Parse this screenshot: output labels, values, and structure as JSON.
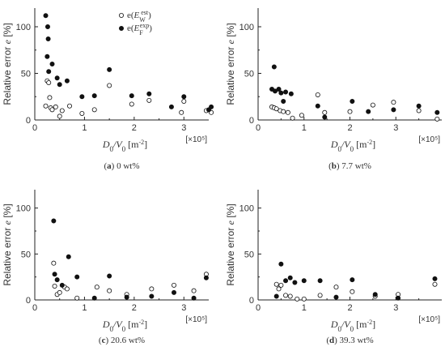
{
  "chart_data": [
    {
      "type": "scatter",
      "panel_label": "(a)",
      "caption": "0 wt%",
      "xlabel": "D0/V0 [m⁻²]",
      "ylabel": "Relative error e [%]",
      "xlim": [
        0,
        3.5
      ],
      "ylim": [
        0,
        120
      ],
      "xticks": [
        0,
        1,
        2,
        3
      ],
      "yticks": [
        0,
        50,
        100
      ],
      "x_multiplier": "[×10⁵]",
      "legend_placement": "top-right",
      "legend": [
        {
          "marker": "open",
          "label": "e(Ew est)"
        },
        {
          "marker": "filled",
          "label": "e(Ef exp)"
        }
      ],
      "series": [
        {
          "marker": "open",
          "points": [
            [
              0.22,
              15
            ],
            [
              0.25,
              42
            ],
            [
              0.28,
              40
            ],
            [
              0.3,
              24
            ],
            [
              0.32,
              13
            ],
            [
              0.35,
              11
            ],
            [
              0.42,
              14
            ],
            [
              0.5,
              4
            ],
            [
              0.55,
              10
            ],
            [
              0.7,
              15
            ],
            [
              0.95,
              7
            ],
            [
              1.2,
              11
            ],
            [
              1.5,
              37
            ],
            [
              1.95,
              17
            ],
            [
              2.3,
              21
            ],
            [
              2.95,
              8
            ],
            [
              3.0,
              20
            ],
            [
              3.45,
              10
            ],
            [
              3.55,
              8
            ]
          ]
        },
        {
          "marker": "filled",
          "points": [
            [
              0.22,
              112
            ],
            [
              0.26,
              100
            ],
            [
              0.27,
              87
            ],
            [
              0.25,
              68
            ],
            [
              0.28,
              52
            ],
            [
              0.35,
              60
            ],
            [
              0.45,
              45
            ],
            [
              0.5,
              38
            ],
            [
              0.65,
              42
            ],
            [
              0.95,
              25
            ],
            [
              1.2,
              26
            ],
            [
              1.5,
              54
            ],
            [
              1.95,
              26
            ],
            [
              2.3,
              28
            ],
            [
              2.75,
              14
            ],
            [
              3.0,
              25
            ],
            [
              3.5,
              11
            ],
            [
              3.55,
              14
            ]
          ]
        }
      ]
    },
    {
      "type": "scatter",
      "panel_label": "(b)",
      "caption": "7.7 wt%",
      "xlabel": "D0/V0 [m⁻²]",
      "ylabel": "Relative error e [%]",
      "xlim": [
        0,
        4
      ],
      "ylim": [
        0,
        120
      ],
      "xticks": [
        0,
        1,
        2,
        3
      ],
      "yticks": [
        0,
        50,
        100
      ],
      "x_multiplier": "[×10⁵]",
      "series": [
        {
          "marker": "open",
          "points": [
            [
              0.3,
              14
            ],
            [
              0.35,
              13
            ],
            [
              0.4,
              12
            ],
            [
              0.48,
              10
            ],
            [
              0.55,
              9
            ],
            [
              0.65,
              8
            ],
            [
              0.75,
              2
            ],
            [
              0.95,
              5
            ],
            [
              1.3,
              27
            ],
            [
              1.45,
              8
            ],
            [
              2.0,
              9
            ],
            [
              2.5,
              16
            ],
            [
              2.95,
              19
            ],
            [
              3.5,
              10
            ],
            [
              3.9,
              1
            ]
          ]
        },
        {
          "marker": "filled",
          "points": [
            [
              0.3,
              33
            ],
            [
              0.35,
              57
            ],
            [
              0.37,
              31
            ],
            [
              0.45,
              33
            ],
            [
              0.5,
              29
            ],
            [
              0.55,
              20
            ],
            [
              0.6,
              30
            ],
            [
              0.72,
              28
            ],
            [
              1.3,
              15
            ],
            [
              1.45,
              3
            ],
            [
              2.05,
              20
            ],
            [
              2.4,
              9
            ],
            [
              2.95,
              11
            ],
            [
              3.5,
              15
            ],
            [
              3.9,
              8
            ]
          ]
        }
      ]
    },
    {
      "type": "scatter",
      "panel_label": "(c)",
      "caption": "20.6 wt%",
      "xlabel": "D0/V0 [m⁻²]",
      "ylabel": "Relative error e [%]",
      "xlim": [
        0,
        3.5
      ],
      "ylim": [
        0,
        120
      ],
      "xticks": [
        0,
        1,
        2,
        3
      ],
      "yticks": [
        0,
        50,
        100
      ],
      "x_multiplier": "[×10⁵]",
      "series": [
        {
          "marker": "open",
          "points": [
            [
              0.38,
              40
            ],
            [
              0.4,
              15
            ],
            [
              0.45,
              6
            ],
            [
              0.5,
              8
            ],
            [
              0.6,
              14
            ],
            [
              0.65,
              12
            ],
            [
              0.85,
              2
            ],
            [
              1.25,
              14
            ],
            [
              1.5,
              10
            ],
            [
              1.85,
              6
            ],
            [
              2.35,
              12
            ],
            [
              2.8,
              16
            ],
            [
              3.2,
              10
            ],
            [
              3.45,
              28
            ]
          ]
        },
        {
          "marker": "filled",
          "points": [
            [
              0.38,
              86
            ],
            [
              0.4,
              28
            ],
            [
              0.45,
              22
            ],
            [
              0.55,
              16
            ],
            [
              0.68,
              47
            ],
            [
              0.85,
              25
            ],
            [
              1.2,
              2
            ],
            [
              1.5,
              26
            ],
            [
              1.85,
              3
            ],
            [
              2.35,
              4
            ],
            [
              2.8,
              8
            ],
            [
              3.2,
              2
            ],
            [
              3.45,
              24
            ]
          ]
        }
      ]
    },
    {
      "type": "scatter",
      "panel_label": "(d)",
      "caption": "39.3 wt%",
      "xlabel": "D0/V0 [m⁻²]",
      "ylabel": "Relative error e [%]",
      "xlim": [
        0,
        4
      ],
      "ylim": [
        0,
        120
      ],
      "xticks": [
        0,
        1,
        2,
        3
      ],
      "yticks": [
        0,
        50,
        100
      ],
      "x_multiplier": "[×10⁵]",
      "series": [
        {
          "marker": "open",
          "points": [
            [
              0.4,
              17
            ],
            [
              0.45,
              12
            ],
            [
              0.5,
              16
            ],
            [
              0.6,
              5
            ],
            [
              0.7,
              4
            ],
            [
              0.85,
              1
            ],
            [
              1.0,
              1
            ],
            [
              1.35,
              5
            ],
            [
              1.7,
              14
            ],
            [
              2.05,
              9
            ],
            [
              2.55,
              4
            ],
            [
              3.05,
              6
            ],
            [
              3.85,
              17
            ]
          ]
        },
        {
          "marker": "filled",
          "points": [
            [
              0.4,
              4
            ],
            [
              0.5,
              39
            ],
            [
              0.6,
              21
            ],
            [
              0.7,
              24
            ],
            [
              0.8,
              19
            ],
            [
              1.0,
              21
            ],
            [
              1.35,
              21
            ],
            [
              1.7,
              3
            ],
            [
              2.05,
              22
            ],
            [
              2.55,
              6
            ],
            [
              3.05,
              2
            ],
            [
              3.85,
              23
            ]
          ]
        }
      ]
    }
  ]
}
